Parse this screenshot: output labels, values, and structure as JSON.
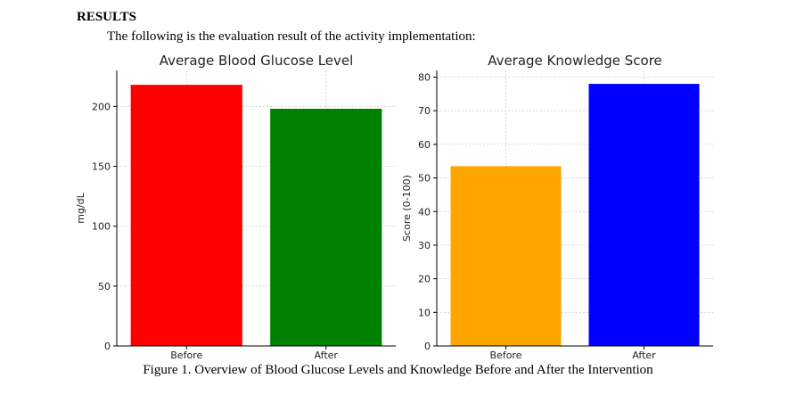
{
  "document": {
    "heading": "RESULTS",
    "intro": "The following is the evaluation result of the activity implementation:",
    "caption": "Figure 1. Overview of Blood Glucose Levels and Knowledge Before and After the Intervention"
  },
  "chart_data": [
    {
      "type": "bar",
      "title": "Average Blood Glucose Level",
      "xlabel": "",
      "ylabel": "mg/dL",
      "categories": [
        "Before",
        "After"
      ],
      "values": [
        218,
        198
      ],
      "colors": [
        "#ff0000",
        "#008000"
      ],
      "ylim": [
        0,
        230
      ],
      "yticks": [
        0,
        50,
        100,
        150,
        200
      ],
      "grid": true,
      "legend": "none"
    },
    {
      "type": "bar",
      "title": "Average Knowledge Score",
      "xlabel": "",
      "ylabel": "Score (0-100)",
      "categories": [
        "Before",
        "After"
      ],
      "values": [
        53.5,
        78
      ],
      "colors": [
        "#ffa500",
        "#0000ff"
      ],
      "ylim": [
        0,
        82
      ],
      "yticks": [
        0,
        10,
        20,
        30,
        40,
        50,
        60,
        70,
        80
      ],
      "grid": true,
      "legend": "none"
    }
  ]
}
